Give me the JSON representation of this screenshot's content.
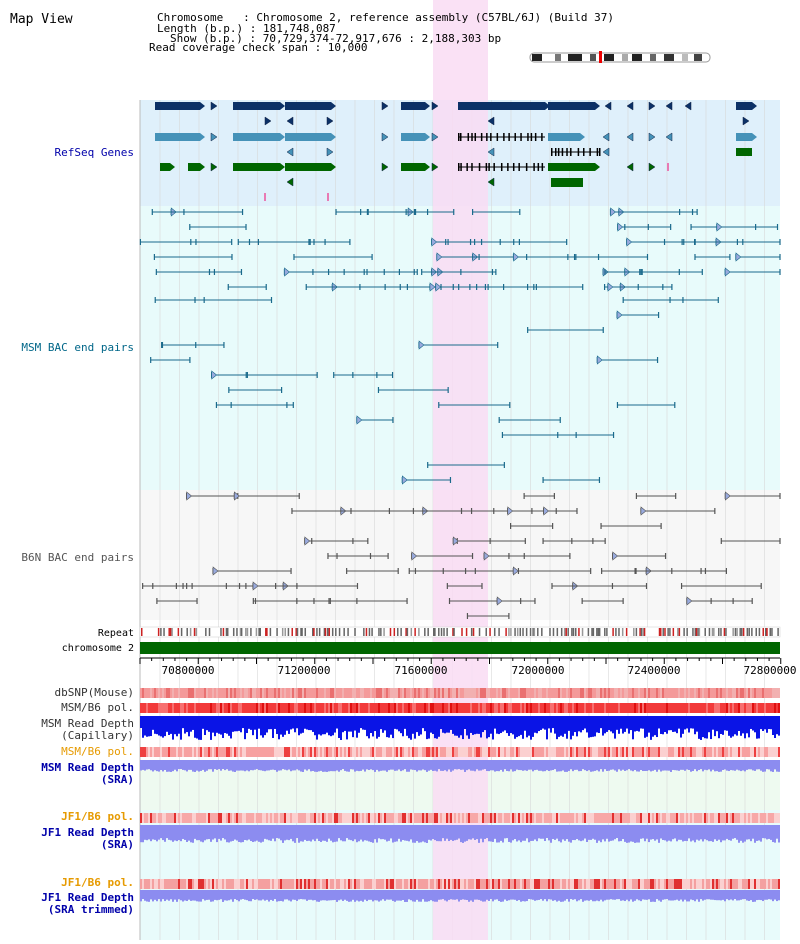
{
  "title": "Map View",
  "header": {
    "chromosome_line": "Chromosome   : Chromosome 2, reference assembly (C57BL/6J) (Build 37)",
    "length_line": "Length (b.p.) : 181,748,087",
    "show_line": "Show (b.p.) : 70,729,374-72,917,676 : 2,188,303 bp",
    "coverage_line": "Read coverage check span : 10,000"
  },
  "tracks": {
    "refseq_label": "RefSeq Genes",
    "msm_bac_label": "MSM BAC end pairs",
    "b6n_bac_label": "B6N BAC end pairs",
    "repeat_label": "Repeat",
    "chromosome_label": "chromosome 2",
    "dbsnp_label": "dbSNP(Mouse)",
    "msm_pol_label": "MSM/B6 pol.",
    "msm_depth_cap_label_1": "MSM Read Depth",
    "msm_depth_cap_label_2": "(Capillary)",
    "msm_pol2_label": "MSM/B6 pol.",
    "msm_depth_sra_label_1": "MSM Read Depth",
    "msm_depth_sra_label_2": "(SRA)",
    "jf1_pol_label": "JF1/B6 pol.",
    "jf1_depth_label_1": "JF1 Read Depth",
    "jf1_depth_label_2": "(SRA)",
    "jf1_pol2_label": "JF1/B6 pol.",
    "jf1_trim_label_1": "JF1 Read Depth",
    "jf1_trim_label_2": "(SRA trimmed)"
  },
  "axis": {
    "ticks": [
      "70800000",
      "71200000",
      "71600000",
      "72000000",
      "72400000",
      "72800000"
    ]
  },
  "colors": {
    "refseq_bg": "#dff0fb",
    "msm_bg": "#e8fbfb",
    "highlight": "#f9dcf3",
    "gene_dark": "#0c3167",
    "gene_mid": "#4592b8",
    "gene_green": "#006600",
    "msm_bac": "#1a6a8c",
    "b6n_bac": "#555555",
    "chromosome": "#006600",
    "label_blue": "#0000aa",
    "label_teal": "#006688",
    "label_orange": "#e69a00",
    "depth_blue": "#0a14e6",
    "depth_light": "#8c8cf0"
  }
}
